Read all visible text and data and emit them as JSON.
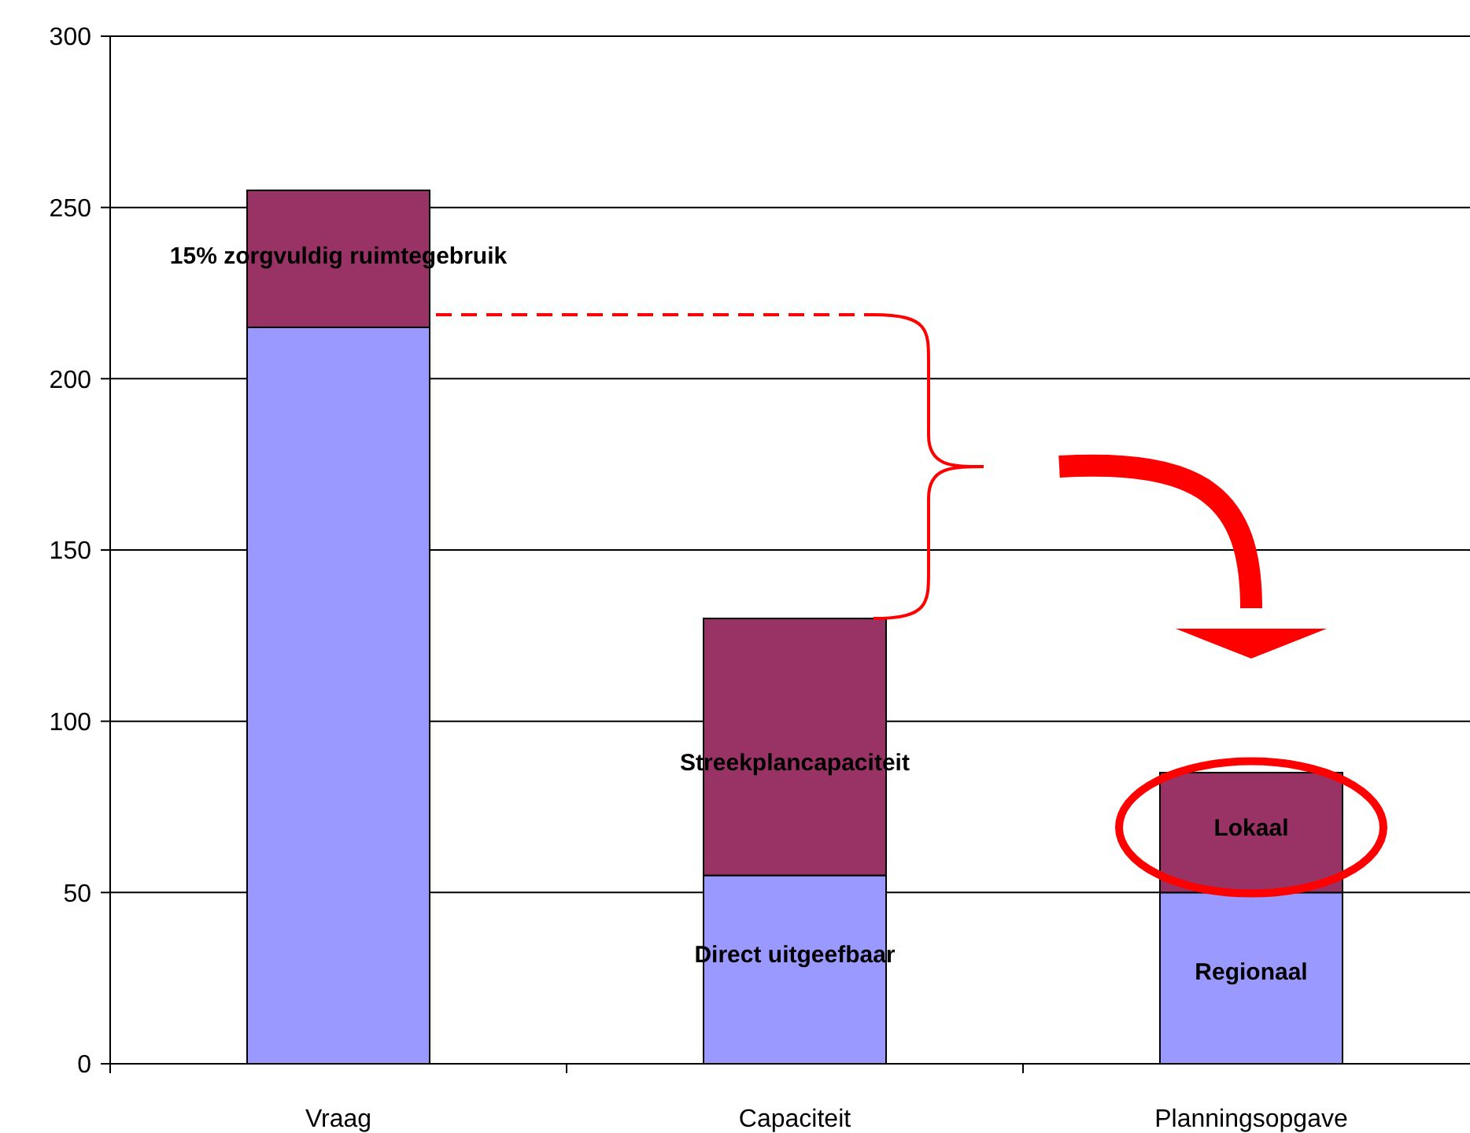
{
  "chart_data": {
    "type": "bar",
    "stacked": true,
    "categories": [
      "Vraag",
      "Capaciteit",
      "Planningsopgave"
    ],
    "series": [
      {
        "color": "#9999ff",
        "values": [
          215,
          55,
          50
        ]
      },
      {
        "color": "#993366",
        "values": [
          40,
          75,
          35
        ]
      }
    ],
    "ylim": [
      0,
      300
    ],
    "yticks": [
      0,
      50,
      100,
      150,
      200,
      250,
      300
    ],
    "grid": "y",
    "annotations": [
      "15% zorgvuldig ruimtegebruik",
      "Streekplancapaciteit",
      "Direct uitgeefbaar",
      "Lokaal",
      "Regionaal"
    ]
  }
}
